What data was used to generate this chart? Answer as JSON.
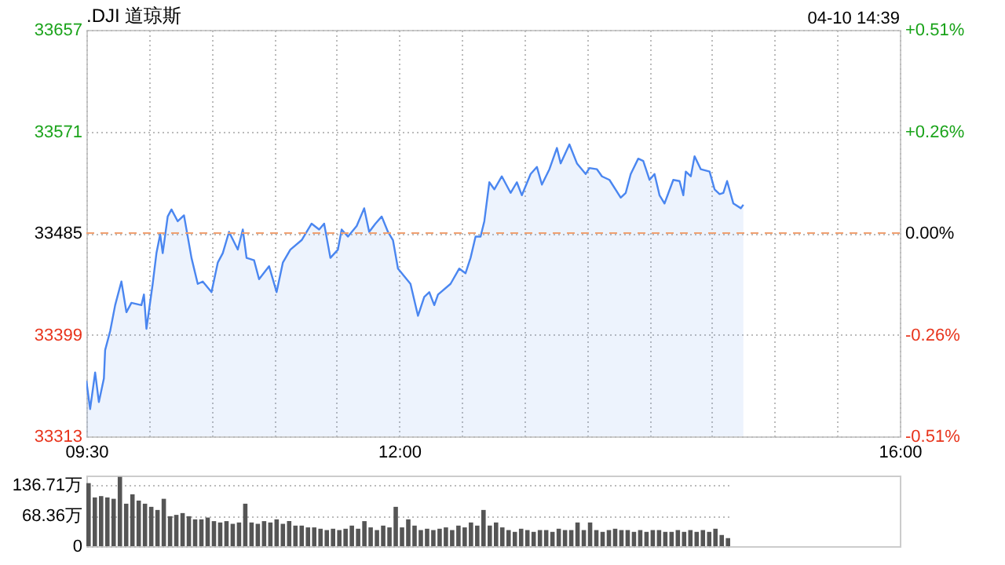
{
  "chart_data": [
    {
      "type": "area",
      "title": ".DJI 道琼斯",
      "annotations": [
        "04-10 14:39"
      ],
      "grid": true,
      "legend": false,
      "marker": "none",
      "line_style": "solid",
      "xlim": [
        9.5,
        16
      ],
      "xticks": [
        {
          "value": 9.5,
          "label": "09:30"
        },
        {
          "value": 10,
          "label": null
        },
        {
          "value": 10.5,
          "label": null
        },
        {
          "value": 11,
          "label": null
        },
        {
          "value": 11.5,
          "label": null
        },
        {
          "value": 12,
          "label": "12:00"
        },
        {
          "value": 12.5,
          "label": null
        },
        {
          "value": 13,
          "label": null
        },
        {
          "value": 13.5,
          "label": null
        },
        {
          "value": 14,
          "label": null
        },
        {
          "value": 14.5,
          "label": null
        },
        {
          "value": 15,
          "label": null
        },
        {
          "value": 15.5,
          "label": null
        },
        {
          "value": 16,
          "label": "16:00"
        }
      ],
      "ylim": [
        33313,
        33657
      ],
      "yticks": [
        33313,
        33399,
        33485,
        33571,
        33657
      ],
      "y2lim": [
        -0.51,
        0.51
      ],
      "y2ticks": [
        {
          "value": -0.51,
          "label": "-0.51%"
        },
        {
          "value": -0.255,
          "label": "-0.26%"
        },
        {
          "value": 0,
          "label": "0.00%"
        },
        {
          "value": 0.255,
          "label": "+0.26%"
        },
        {
          "value": 0.51,
          "label": "+0.51%"
        }
      ],
      "ref_lines": [
        {
          "axis": "y2",
          "value": 0,
          "color": "#f0a070",
          "line_style": "dashed"
        }
      ],
      "series": [
        {
          "color": "#4a86f0",
          "x": [
            9.5,
            9.53,
            9.57,
            9.6,
            9.64,
            9.65,
            9.69,
            9.73,
            9.78,
            9.82,
            9.86,
            9.94,
            9.96,
            9.98,
            10.03,
            10.06,
            10.09,
            10.11,
            10.15,
            10.18,
            10.23,
            10.28,
            10.34,
            10.39,
            10.43,
            10.5,
            10.55,
            10.59,
            10.64,
            10.71,
            10.75,
            10.78,
            10.84,
            10.88,
            10.96,
            11.02,
            11.07,
            11.13,
            11.22,
            11.3,
            11.36,
            11.4,
            11.45,
            11.51,
            11.54,
            11.59,
            11.66,
            11.72,
            11.76,
            11.81,
            11.86,
            11.91,
            11.95,
            11.99,
            12.09,
            12.15,
            12.2,
            12.24,
            12.28,
            12.31,
            12.41,
            12.48,
            12.53,
            12.57,
            12.61,
            12.65,
            12.68,
            12.72,
            12.76,
            12.82,
            12.89,
            12.94,
            12.98,
            13.05,
            13.1,
            13.14,
            13.2,
            13.26,
            13.29,
            13.36,
            13.42,
            13.49,
            13.52,
            13.58,
            13.62,
            13.68,
            13.77,
            13.81,
            13.85,
            13.91,
            13.95,
            14.0,
            14.04,
            14.08,
            14.12,
            14.19,
            14.24,
            14.27,
            14.29,
            14.33,
            14.36,
            14.41,
            14.48,
            14.52,
            14.56,
            14.59,
            14.62,
            14.67,
            14.73,
            14.75
          ],
          "values": [
            33360,
            33336,
            33367,
            33342,
            33362,
            33386,
            33402,
            33424,
            33444,
            33418,
            33426,
            33424,
            33433,
            33404,
            33442,
            33468,
            33484,
            33468,
            33499,
            33505,
            33495,
            33500,
            33464,
            33442,
            33444,
            33435,
            33460,
            33468,
            33486,
            33471,
            33488,
            33464,
            33462,
            33446,
            33457,
            33435,
            33460,
            33471,
            33479,
            33493,
            33488,
            33493,
            33464,
            33471,
            33488,
            33482,
            33491,
            33506,
            33486,
            33493,
            33499,
            33486,
            33479,
            33455,
            33442,
            33415,
            33431,
            33435,
            33424,
            33433,
            33442,
            33455,
            33451,
            33464,
            33482,
            33482,
            33495,
            33528,
            33522,
            33533,
            33519,
            33528,
            33517,
            33535,
            33541,
            33526,
            33539,
            33557,
            33544,
            33560,
            33544,
            33535,
            33540,
            33539,
            33533,
            33530,
            33515,
            33519,
            33535,
            33548,
            33546,
            33530,
            33535,
            33517,
            33510,
            33530,
            33529,
            33517,
            33537,
            33533,
            33550,
            33539,
            33537,
            33522,
            33518,
            33519,
            33529,
            33510,
            33506,
            33509
          ]
        }
      ]
    },
    {
      "type": "bar",
      "grid": "y",
      "legend": false,
      "categories": [
        null,
        null,
        null,
        null,
        null,
        null,
        null,
        null,
        null,
        null,
        null,
        null,
        null,
        null,
        null,
        null,
        null,
        null,
        null,
        null,
        null,
        null,
        null,
        null,
        null,
        null,
        null,
        null,
        null,
        null,
        null,
        null,
        null,
        null,
        null,
        null,
        null,
        null,
        null,
        null,
        null,
        null,
        null,
        null,
        null,
        null,
        null,
        null,
        null,
        null,
        null,
        null,
        null,
        null,
        null,
        null,
        null,
        null,
        null,
        null,
        null,
        null,
        null,
        null,
        null,
        null,
        null,
        null,
        null,
        null,
        null,
        null,
        null,
        null,
        null,
        null,
        null,
        null,
        null,
        null,
        null,
        null,
        null,
        null,
        null,
        null,
        null,
        null,
        null,
        null,
        null,
        null,
        null,
        null,
        null,
        null,
        null,
        null,
        null,
        null,
        null,
        null,
        null
      ],
      "ylim": [
        0,
        158
      ],
      "yticks": [
        {
          "value": 0,
          "label": "0"
        },
        {
          "value": 68.36,
          "label": "68.36万"
        },
        {
          "value": 136.71,
          "label": "136.71万"
        }
      ],
      "series": [
        {
          "color": "#555555",
          "values": [
            141,
            109,
            112,
            109,
            106,
            155,
            95,
            116,
            102,
            95,
            88,
            81,
            106,
            67,
            70,
            74,
            67,
            60,
            60,
            64,
            56,
            53,
            56,
            50,
            53,
            95,
            53,
            50,
            56,
            53,
            60,
            50,
            56,
            46,
            46,
            42,
            42,
            39,
            36,
            39,
            36,
            39,
            46,
            39,
            56,
            42,
            36,
            46,
            42,
            88,
            42,
            60,
            46,
            36,
            39,
            36,
            39,
            42,
            36,
            46,
            42,
            53,
            46,
            81,
            46,
            53,
            42,
            36,
            32,
            39,
            36,
            32,
            36,
            36,
            32,
            39,
            36,
            36,
            53,
            36,
            53,
            36,
            32,
            36,
            39,
            36,
            36,
            32,
            36,
            32,
            36,
            36,
            32,
            32,
            36,
            32,
            36,
            32,
            36,
            32,
            39,
            25,
            18
          ]
        }
      ]
    }
  ]
}
